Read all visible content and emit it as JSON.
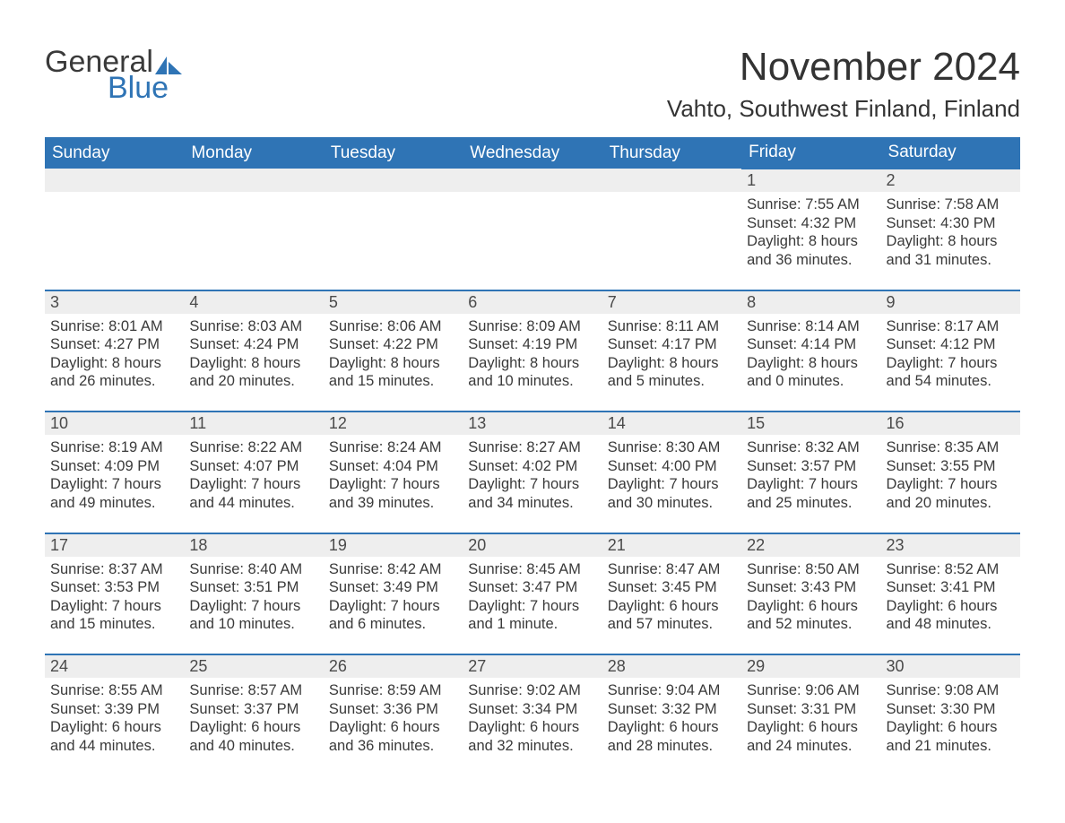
{
  "logo": {
    "text1": "General",
    "text2": "Blue",
    "sail_color": "#2f74b5"
  },
  "title": "November 2024",
  "location": "Vahto, Southwest Finland, Finland",
  "colors": {
    "header_bg": "#2f74b5",
    "header_text": "#ffffff",
    "day_bar_bg": "#eeeeee",
    "day_bar_border": "#2f74b5",
    "body_text": "#3a3a3a"
  },
  "weekdays": [
    "Sunday",
    "Monday",
    "Tuesday",
    "Wednesday",
    "Thursday",
    "Friday",
    "Saturday"
  ],
  "weeks": [
    [
      null,
      null,
      null,
      null,
      null,
      {
        "n": 1,
        "sr": "7:55 AM",
        "ss": "4:32 PM",
        "dl": "8 hours and 36 minutes."
      },
      {
        "n": 2,
        "sr": "7:58 AM",
        "ss": "4:30 PM",
        "dl": "8 hours and 31 minutes."
      }
    ],
    [
      {
        "n": 3,
        "sr": "8:01 AM",
        "ss": "4:27 PM",
        "dl": "8 hours and 26 minutes."
      },
      {
        "n": 4,
        "sr": "8:03 AM",
        "ss": "4:24 PM",
        "dl": "8 hours and 20 minutes."
      },
      {
        "n": 5,
        "sr": "8:06 AM",
        "ss": "4:22 PM",
        "dl": "8 hours and 15 minutes."
      },
      {
        "n": 6,
        "sr": "8:09 AM",
        "ss": "4:19 PM",
        "dl": "8 hours and 10 minutes."
      },
      {
        "n": 7,
        "sr": "8:11 AM",
        "ss": "4:17 PM",
        "dl": "8 hours and 5 minutes."
      },
      {
        "n": 8,
        "sr": "8:14 AM",
        "ss": "4:14 PM",
        "dl": "8 hours and 0 minutes."
      },
      {
        "n": 9,
        "sr": "8:17 AM",
        "ss": "4:12 PM",
        "dl": "7 hours and 54 minutes."
      }
    ],
    [
      {
        "n": 10,
        "sr": "8:19 AM",
        "ss": "4:09 PM",
        "dl": "7 hours and 49 minutes."
      },
      {
        "n": 11,
        "sr": "8:22 AM",
        "ss": "4:07 PM",
        "dl": "7 hours and 44 minutes."
      },
      {
        "n": 12,
        "sr": "8:24 AM",
        "ss": "4:04 PM",
        "dl": "7 hours and 39 minutes."
      },
      {
        "n": 13,
        "sr": "8:27 AM",
        "ss": "4:02 PM",
        "dl": "7 hours and 34 minutes."
      },
      {
        "n": 14,
        "sr": "8:30 AM",
        "ss": "4:00 PM",
        "dl": "7 hours and 30 minutes."
      },
      {
        "n": 15,
        "sr": "8:32 AM",
        "ss": "3:57 PM",
        "dl": "7 hours and 25 minutes."
      },
      {
        "n": 16,
        "sr": "8:35 AM",
        "ss": "3:55 PM",
        "dl": "7 hours and 20 minutes."
      }
    ],
    [
      {
        "n": 17,
        "sr": "8:37 AM",
        "ss": "3:53 PM",
        "dl": "7 hours and 15 minutes."
      },
      {
        "n": 18,
        "sr": "8:40 AM",
        "ss": "3:51 PM",
        "dl": "7 hours and 10 minutes."
      },
      {
        "n": 19,
        "sr": "8:42 AM",
        "ss": "3:49 PM",
        "dl": "7 hours and 6 minutes."
      },
      {
        "n": 20,
        "sr": "8:45 AM",
        "ss": "3:47 PM",
        "dl": "7 hours and 1 minute."
      },
      {
        "n": 21,
        "sr": "8:47 AM",
        "ss": "3:45 PM",
        "dl": "6 hours and 57 minutes."
      },
      {
        "n": 22,
        "sr": "8:50 AM",
        "ss": "3:43 PM",
        "dl": "6 hours and 52 minutes."
      },
      {
        "n": 23,
        "sr": "8:52 AM",
        "ss": "3:41 PM",
        "dl": "6 hours and 48 minutes."
      }
    ],
    [
      {
        "n": 24,
        "sr": "8:55 AM",
        "ss": "3:39 PM",
        "dl": "6 hours and 44 minutes."
      },
      {
        "n": 25,
        "sr": "8:57 AM",
        "ss": "3:37 PM",
        "dl": "6 hours and 40 minutes."
      },
      {
        "n": 26,
        "sr": "8:59 AM",
        "ss": "3:36 PM",
        "dl": "6 hours and 36 minutes."
      },
      {
        "n": 27,
        "sr": "9:02 AM",
        "ss": "3:34 PM",
        "dl": "6 hours and 32 minutes."
      },
      {
        "n": 28,
        "sr": "9:04 AM",
        "ss": "3:32 PM",
        "dl": "6 hours and 28 minutes."
      },
      {
        "n": 29,
        "sr": "9:06 AM",
        "ss": "3:31 PM",
        "dl": "6 hours and 24 minutes."
      },
      {
        "n": 30,
        "sr": "9:08 AM",
        "ss": "3:30 PM",
        "dl": "6 hours and 21 minutes."
      }
    ]
  ],
  "labels": {
    "sunrise": "Sunrise:",
    "sunset": "Sunset:",
    "daylight": "Daylight:"
  }
}
